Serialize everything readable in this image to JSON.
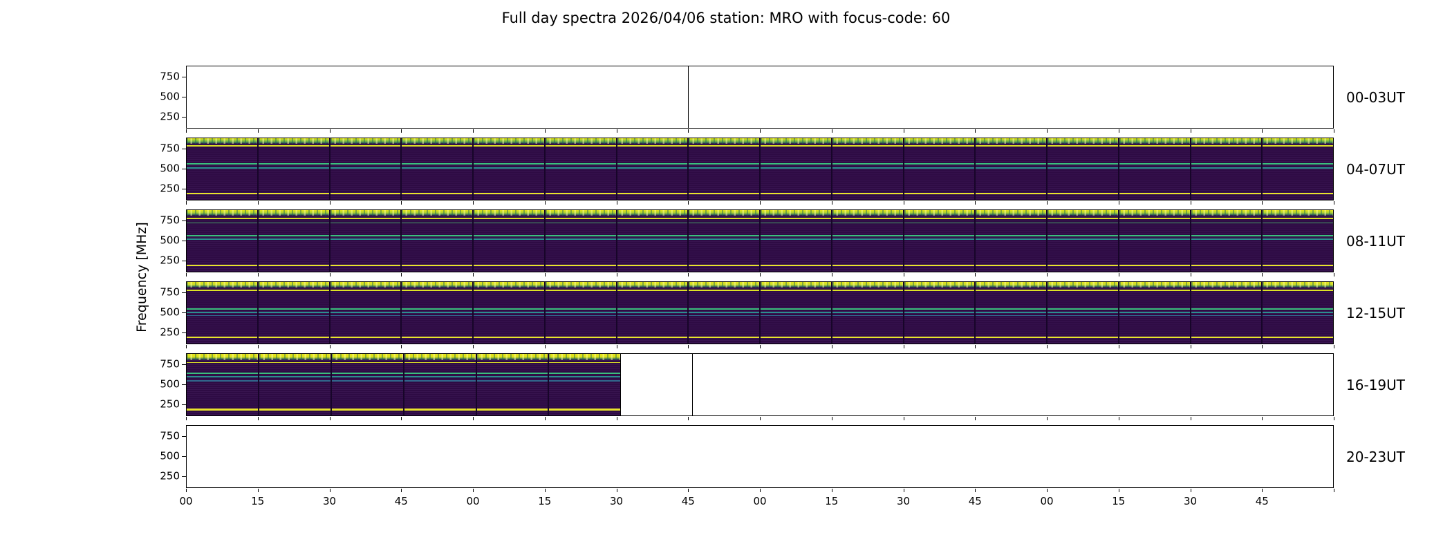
{
  "title": "Full day spectra 2026/04/06 station: MRO with focus-code: 60",
  "axes": {
    "y_label": "Frequency [MHz]",
    "y_ticks": [
      "750",
      "500",
      "250"
    ],
    "y_tick_pct": [
      18,
      49.5,
      81
    ],
    "x_ticks": [
      "00",
      "15",
      "30",
      "45",
      "00",
      "15",
      "30",
      "45",
      "00",
      "15",
      "30",
      "45",
      "00",
      "15",
      "30",
      "45"
    ]
  },
  "colors": {
    "background": "#ffffff",
    "axis": "#000000",
    "spectrogram_base": "#2e0b44",
    "band_yellow": "#e8e42a",
    "band_green": "#3bbf7d",
    "band_teal": "#2b8f8e"
  },
  "chart_data": {
    "type": "heatmap",
    "subtype": "spectrogram-grid",
    "title": "Full day spectra 2026/04/06 station: MRO with focus-code: 60",
    "station": "MRO",
    "date": "2026/04/06",
    "focus_code": "60",
    "ylabel": "Frequency [MHz]",
    "y_ticks_mhz": [
      750,
      500,
      250
    ],
    "x_tick_minutes": [
      "00",
      "15",
      "30",
      "45",
      "00",
      "15",
      "30",
      "45",
      "00",
      "15",
      "30",
      "45",
      "00",
      "15",
      "30",
      "45"
    ],
    "segments_per_row": 16,
    "minutes_per_segment": 15,
    "hours_per_row": 4,
    "rows": [
      {
        "label": "00-03UT",
        "coverage": 0,
        "divider_boundary": 7,
        "bands": []
      },
      {
        "label": "04-07UT",
        "coverage": 1,
        "bands": [
          {
            "freq_mhz": 855,
            "top_pct": 0,
            "height_pct": 9,
            "color": "#7fbf3f",
            "noisy": true
          },
          {
            "freq_mhz": 795,
            "top_pct": 11.5,
            "height_pct": 2.4,
            "color": "#dce126"
          },
          {
            "freq_mhz": 560,
            "top_pct": 41,
            "height_pct": 2.2,
            "color": "#3bbf7d"
          },
          {
            "freq_mhz": 510,
            "top_pct": 47.5,
            "height_pct": 2.0,
            "color": "#2b8f8e"
          },
          {
            "freq_mhz": 180,
            "top_pct": 88.5,
            "height_pct": 3.0,
            "color": "#e8e42a"
          }
        ]
      },
      {
        "label": "08-11UT",
        "coverage": 1,
        "bands": [
          {
            "freq_mhz": 855,
            "top_pct": 0,
            "height_pct": 9,
            "color": "#a6cf36",
            "noisy": true
          },
          {
            "freq_mhz": 795,
            "top_pct": 12,
            "height_pct": 2.4,
            "color": "#dce126"
          },
          {
            "freq_mhz": 735,
            "top_pct": 20,
            "height_pct": 1.6,
            "color": "#4aa86c"
          },
          {
            "freq_mhz": 565,
            "top_pct": 40,
            "height_pct": 2.2,
            "color": "#3bbf7d"
          },
          {
            "freq_mhz": 515,
            "top_pct": 46.5,
            "height_pct": 2.0,
            "color": "#2b8f8e"
          },
          {
            "freq_mhz": 180,
            "top_pct": 88.5,
            "height_pct": 3.0,
            "color": "#e8e42a"
          }
        ]
      },
      {
        "label": "12-15UT",
        "coverage": 1,
        "bands": [
          {
            "freq_mhz": 855,
            "top_pct": 0,
            "height_pct": 9,
            "color": "#c6dc2e",
            "noisy": true
          },
          {
            "freq_mhz": 790,
            "top_pct": 12,
            "height_pct": 2.2,
            "color": "#dce126"
          },
          {
            "freq_mhz": 540,
            "top_pct": 43,
            "height_pct": 2.2,
            "color": "#3bbf7d"
          },
          {
            "freq_mhz": 500,
            "top_pct": 48.5,
            "height_pct": 2.0,
            "color": "#2b8f8e"
          },
          {
            "freq_mhz": 455,
            "top_pct": 54,
            "height_pct": 1.6,
            "color": "#31688e"
          },
          {
            "freq_mhz": 180,
            "top_pct": 88.5,
            "height_pct": 3.0,
            "color": "#e8e42a"
          }
        ]
      },
      {
        "label": "16-19UT",
        "coverage": 0.375,
        "divider_boundary": 7,
        "bands": [
          {
            "freq_mhz": 850,
            "top_pct": 0,
            "height_pct": 10,
            "color": "#d8e219",
            "noisy": true
          },
          {
            "freq_mhz": 780,
            "top_pct": 13,
            "height_pct": 2.0,
            "color": "#dce126"
          },
          {
            "freq_mhz": 645,
            "top_pct": 30,
            "height_pct": 2.2,
            "color": "#3bbf7d"
          },
          {
            "freq_mhz": 595,
            "top_pct": 36.5,
            "height_pct": 2.0,
            "color": "#2b8f8e"
          },
          {
            "freq_mhz": 545,
            "top_pct": 43,
            "height_pct": 2.0,
            "color": "#31688e"
          },
          {
            "freq_mhz": 175,
            "top_pct": 89,
            "height_pct": 3.0,
            "color": "#e8e42a"
          }
        ]
      },
      {
        "label": "20-23UT",
        "coverage": 0,
        "bands": []
      }
    ]
  }
}
